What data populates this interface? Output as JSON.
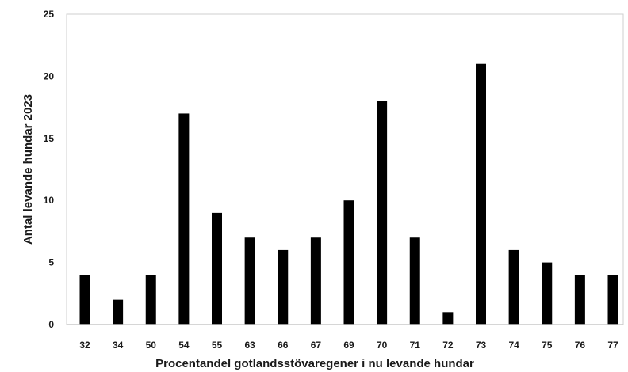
{
  "chart_data": {
    "type": "bar",
    "title": "",
    "xlabel": "Procentandel gotlandsstövaregener i nu levande hundar",
    "ylabel": "Antal levande hundar 2023",
    "categories": [
      "32",
      "34",
      "50",
      "54",
      "55",
      "63",
      "66",
      "67",
      "69",
      "70",
      "71",
      "72",
      "73",
      "74",
      "75",
      "76",
      "77"
    ],
    "series": [
      {
        "values": [
          4,
          2,
          4,
          17,
          9,
          7,
          6,
          7,
          10,
          18,
          7,
          1,
          21,
          6,
          5,
          4,
          4
        ]
      }
    ],
    "ylim": [
      0,
      25
    ],
    "yticks": [
      0,
      5,
      10,
      15,
      20,
      25
    ],
    "grid": false,
    "legend": "none",
    "colors": {
      "bar": "#000000",
      "axis": "#c9c9c9",
      "text": "#1a1a1a"
    }
  }
}
